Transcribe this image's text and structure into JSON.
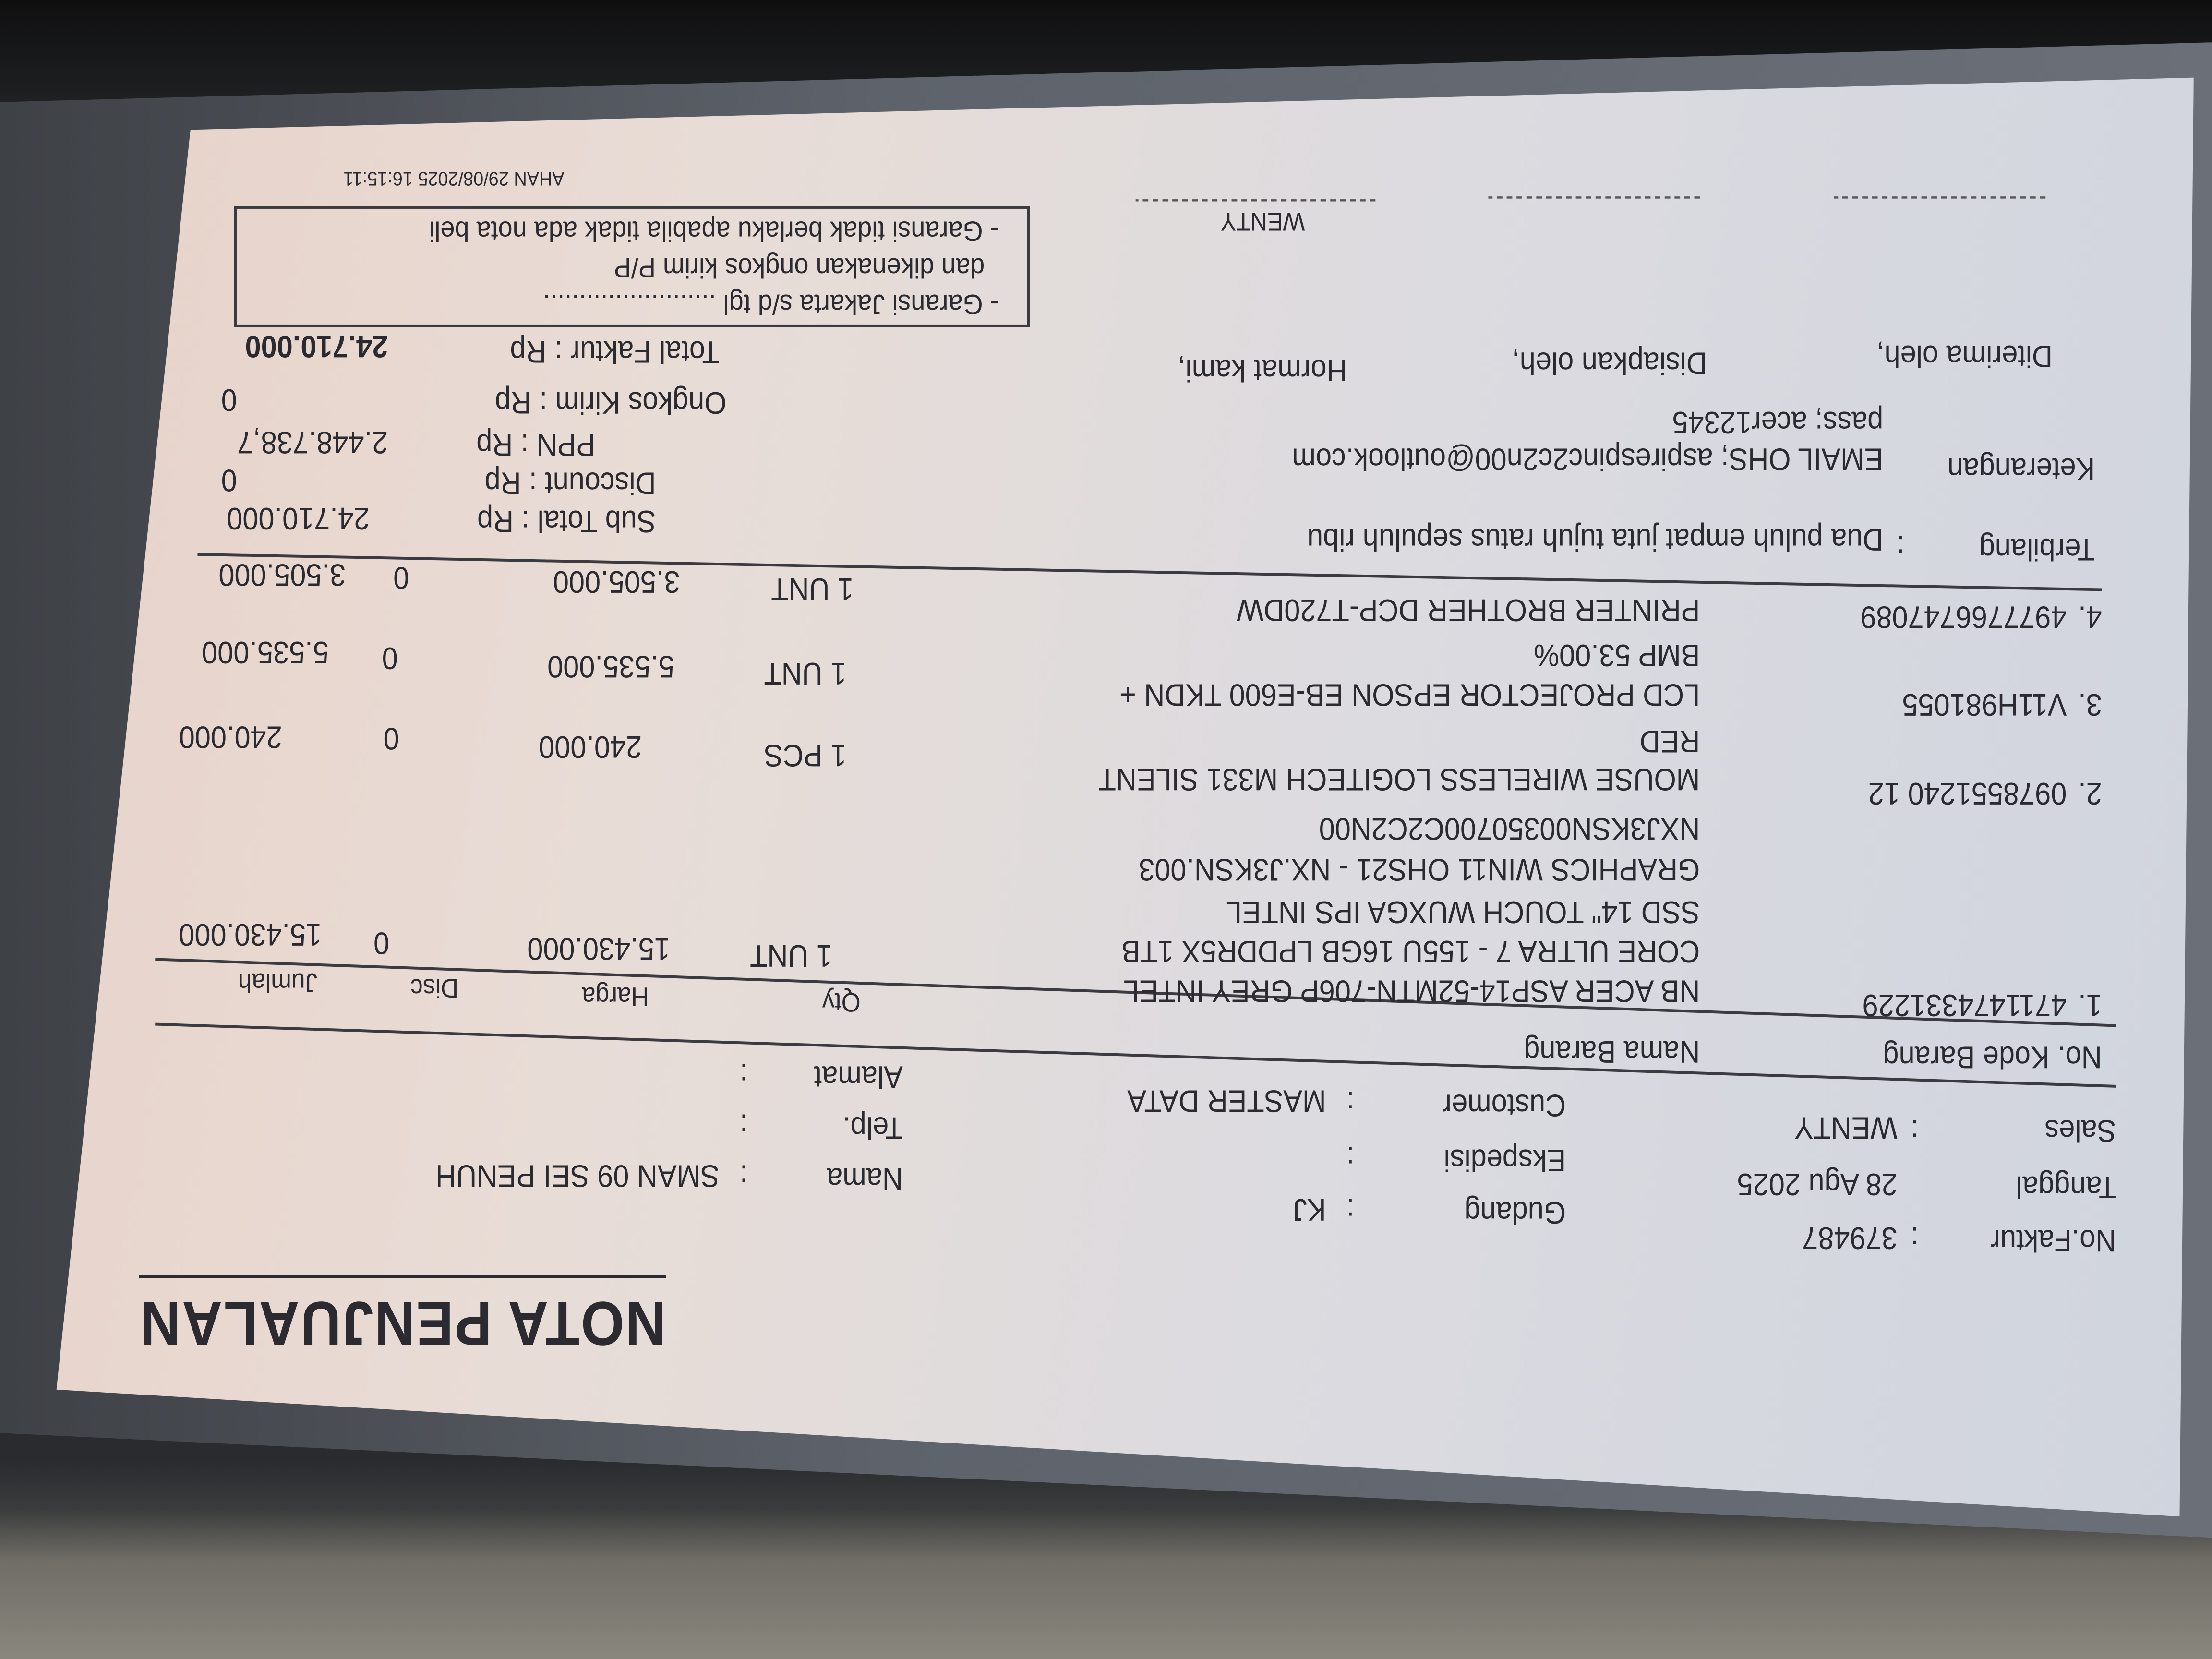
{
  "title": "NOTA PENJUALAN",
  "header": {
    "no_faktur_label": "No.Faktur",
    "no_faktur": "379487",
    "tanggal_label": "Tanggal",
    "tanggal": "28 Agu 2025",
    "sales_label": "Sales",
    "sales": "WENTY",
    "gudang_label": "Gudang",
    "gudang": "KJ",
    "ekspedisi_label": "Ekspedisi",
    "ekspedisi": "",
    "customer_label": "Customer",
    "customer": "MASTER DATA",
    "nama_label": "Nama",
    "nama": "SMAN 09 SEI PENUH",
    "telp_label": "Telp.",
    "telp": "",
    "alamat_label": "Alamat",
    "alamat": "",
    "sep": ":"
  },
  "table": {
    "columns": [
      "No. Kode Barang",
      "Nama Barang",
      "Qty",
      "Harga",
      "Disc",
      "Jumlah"
    ],
    "rows": [
      {
        "no": "1.",
        "kode": "4711474331229",
        "nama": [
          "NB ACER ASP14-52MTN-706P GREY INTEL",
          "CORE ULTRA 7 - 155U 16GB LPDDR5X 1TB",
          "SSD 14\" TOUCH WUXGA IPS  INTEL",
          "GRAPHICS WIN11 OHS21 - NX.J3KSN.003",
          "NXJ3KSN00350700C2C2N00"
        ],
        "qty": "1 UNT",
        "harga": "15.430.000",
        "disc": "0",
        "jumlah": "15.430.000"
      },
      {
        "no": "2.",
        "kode": "0978551240 12",
        "nama": [
          "MOUSE WIRELESS LOGITECH M331 SILENT",
          "RED"
        ],
        "qty": "1 PCS",
        "harga": "240.000",
        "disc": "0",
        "jumlah": "240.000"
      },
      {
        "no": "3.",
        "kode": "V11H981055",
        "nama": [
          "LCD PROJECTOR EPSON EB-E600 TKDN +",
          "BMP  53.00%"
        ],
        "qty": "1 UNT",
        "harga": "5.535.000",
        "disc": "0",
        "jumlah": "5.535.000"
      },
      {
        "no": "4.",
        "kode": "4977766747089",
        "nama": [
          "PRINTER BROTHER DCP-T720DW"
        ],
        "qty": "1 UNT",
        "harga": "3.505.000",
        "disc": "0",
        "jumlah": "3.505.000"
      }
    ]
  },
  "terbilang_label": "Terbilang",
  "terbilang": "Dua puluh empat juta tujuh ratus sepuluh ribu",
  "keterangan_label": "Keterangan",
  "keterangan": [
    "EMAIL OHS; aspirespinc2c2n00@outlook.com",
    "pass; acer12345"
  ],
  "totals": {
    "sub_total_label": "Sub Total : Rp",
    "sub_total": "24.710.000",
    "discount_label": "Discount : Rp",
    "discount": "0",
    "ppn_label": "PPN : Rp",
    "ppn": "2.448.738,7",
    "ongkos_label": "Ongkos Kirim : Rp",
    "ongkos": "0",
    "total_label": "Total Faktur : Rp",
    "total": "24.710.000"
  },
  "signatures": {
    "diterima": "Diterima oleh,",
    "disiapkan": "Disiapkan oleh,",
    "hormat": "Hormat kami,",
    "hormat_name": "WENTY"
  },
  "garansi": [
    "- Garansi Jakarta s/d tgl ........................",
    "dan dikenakan ongkos kirim P/P",
    "- Garansi tidak berlaku apabila tidak ada nota beli"
  ],
  "footer": "AHAN 29/08/2025 16:15:11"
}
